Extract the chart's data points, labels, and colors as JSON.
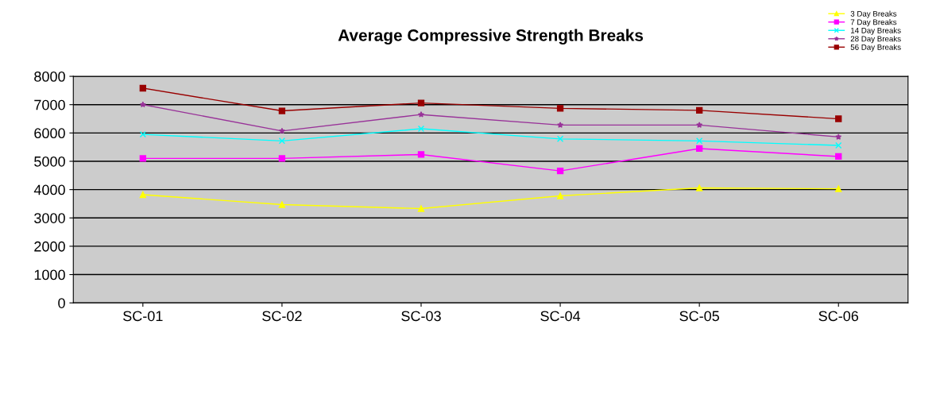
{
  "chart_data": {
    "type": "line",
    "title": "Average Compressive Strength Breaks",
    "categories": [
      "SC-01",
      "SC-02",
      "SC-03",
      "SC-04",
      "SC-05",
      "SC-06"
    ],
    "series": [
      {
        "name": "3 Day Breaks",
        "color": "#ffff00",
        "marker": "triangle",
        "values": [
          3820,
          3470,
          3330,
          3780,
          4060,
          4030
        ]
      },
      {
        "name": "7 Day Breaks",
        "color": "#ff00ff",
        "marker": "square",
        "values": [
          5100,
          5100,
          5240,
          4660,
          5450,
          5170
        ]
      },
      {
        "name": "14 Day Breaks",
        "color": "#00ffff",
        "marker": "cross",
        "values": [
          5950,
          5720,
          6150,
          5790,
          5720,
          5560
        ]
      },
      {
        "name": "28 Day Breaks",
        "color": "#993399",
        "marker": "star",
        "values": [
          7000,
          6070,
          6650,
          6280,
          6280,
          5860
        ]
      },
      {
        "name": "56 Day Breaks",
        "color": "#990000",
        "marker": "square",
        "values": [
          7580,
          6780,
          7060,
          6870,
          6800,
          6500
        ]
      }
    ],
    "ylim": [
      0,
      8000
    ],
    "yticks": [
      0,
      1000,
      2000,
      3000,
      4000,
      5000,
      6000,
      7000,
      8000
    ],
    "grid": "y",
    "legend": "top right"
  }
}
